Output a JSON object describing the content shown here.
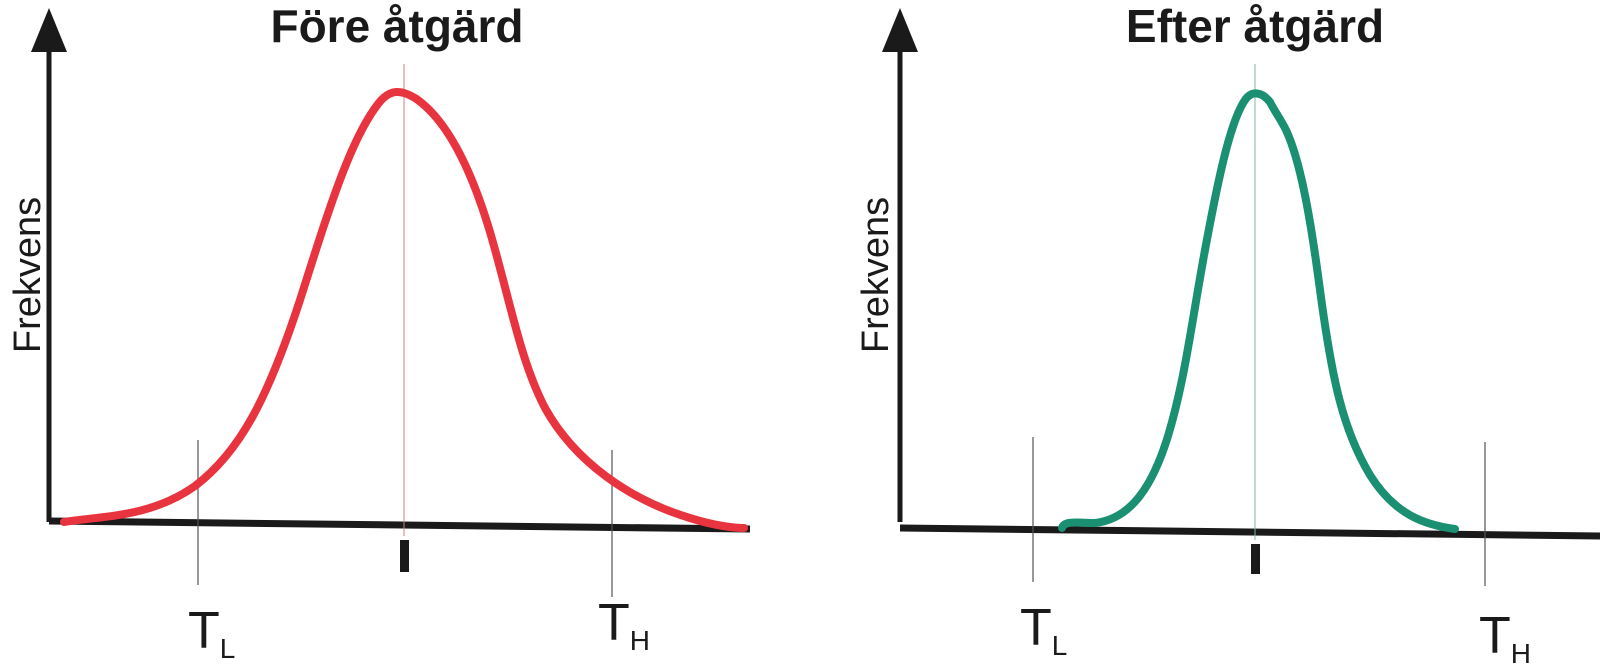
{
  "panels": [
    {
      "id": "before",
      "title": "Före åtgärd",
      "ylabel": "Frekvens",
      "curve_color": "#e8343f",
      "center_line_color": "#c98080",
      "threshold_low": {
        "main": "T",
        "sub": "L"
      },
      "threshold_high": {
        "main": "T",
        "sub": "H"
      }
    },
    {
      "id": "after",
      "title": "Efter åtgärd",
      "ylabel": "Frekvens",
      "curve_color": "#1a8f72",
      "center_line_color": "#7fb8a8",
      "threshold_low": {
        "main": "T",
        "sub": "L"
      },
      "threshold_high": {
        "main": "T",
        "sub": "H"
      }
    }
  ],
  "axis_color": "#1a1a1a"
}
